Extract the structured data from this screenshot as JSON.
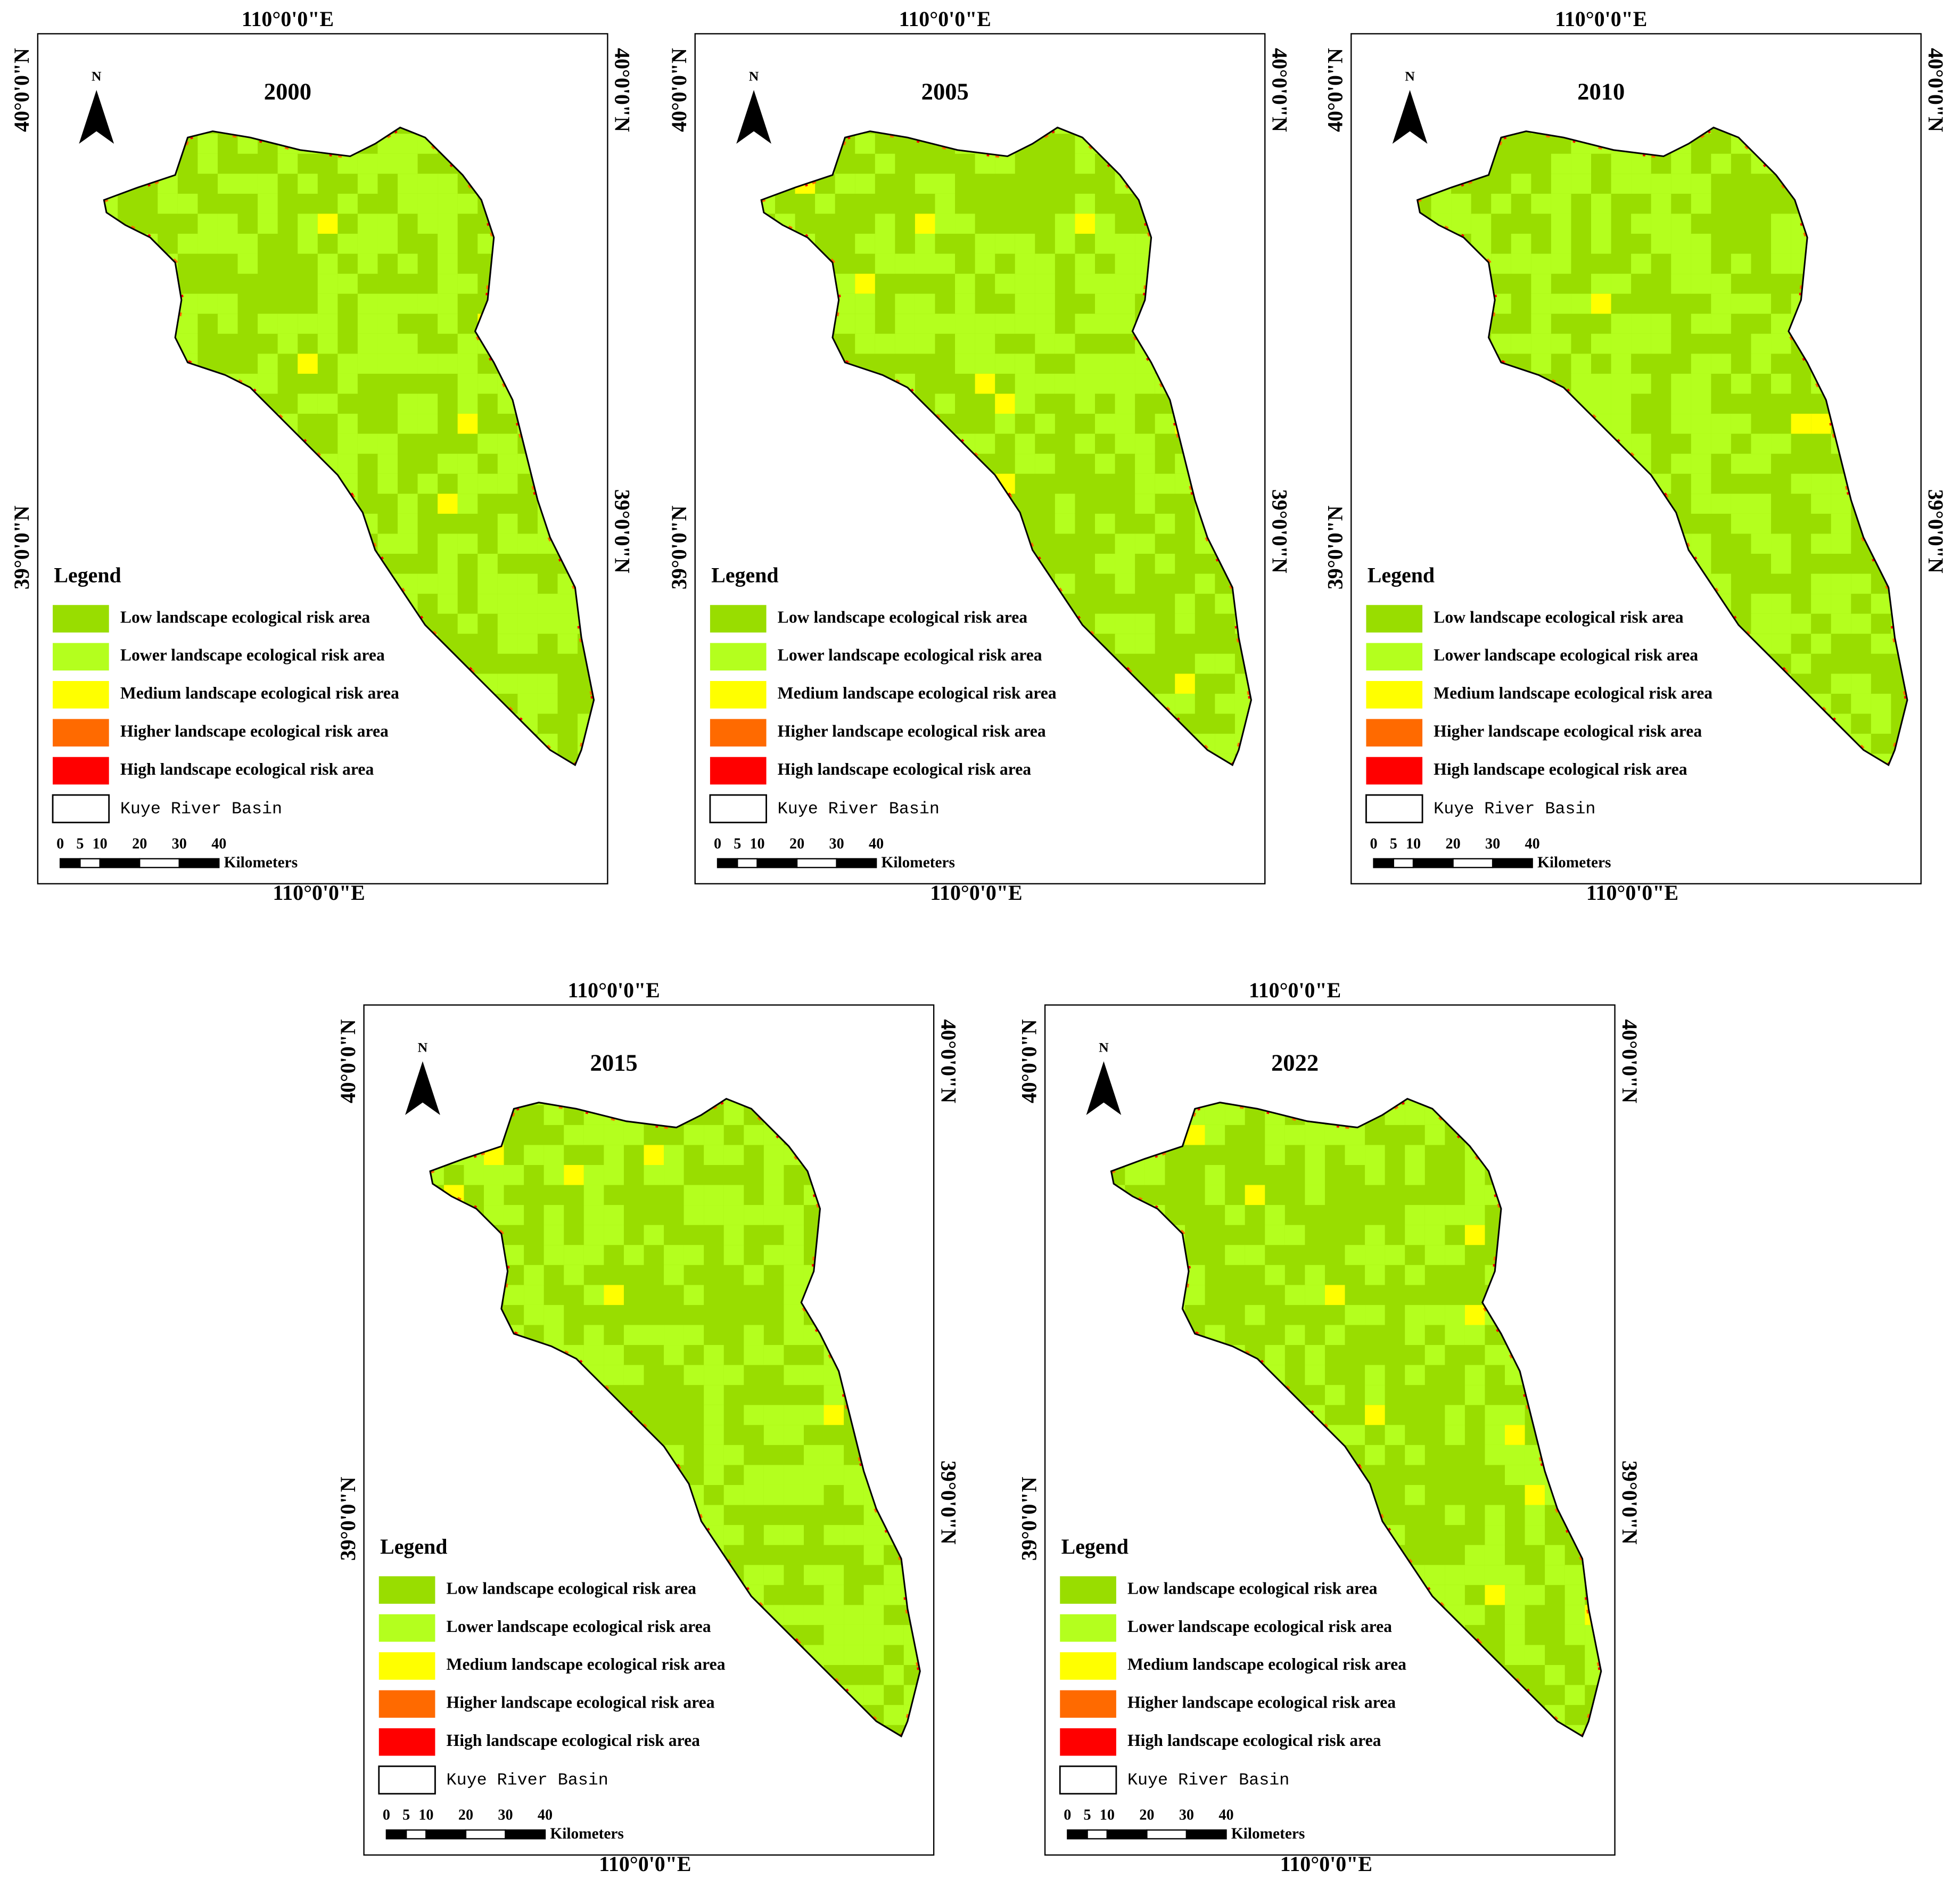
{
  "north": "N",
  "coords": {
    "lon": "110°0'0\"E",
    "lat_top": "40°0'0\"N",
    "lat_bottom": "39°0'0\"N"
  },
  "legend": {
    "title": "Legend",
    "items": [
      {
        "label": "Low landscape ecological risk area",
        "color": "#99dd00"
      },
      {
        "label": "Lower landscape ecological risk area",
        "color": "#b4ff1e"
      },
      {
        "label": "Medium landscape ecological risk area",
        "color": "#ffff00"
      },
      {
        "label": "Higher landscape ecological risk area",
        "color": "#ff6a00"
      },
      {
        "label": "High landscape ecological risk area",
        "color": "#ff0000"
      },
      {
        "label": "Kuye River Basin",
        "color": "#ffffff"
      }
    ]
  },
  "scale_bar": {
    "ticks": [
      0,
      5,
      10,
      20,
      30,
      40
    ],
    "unit": "Kilometers"
  },
  "panels": [
    {
      "year": "2000"
    },
    {
      "year": "2005"
    },
    {
      "year": "2010"
    },
    {
      "year": "2015"
    },
    {
      "year": "2022"
    }
  ]
}
